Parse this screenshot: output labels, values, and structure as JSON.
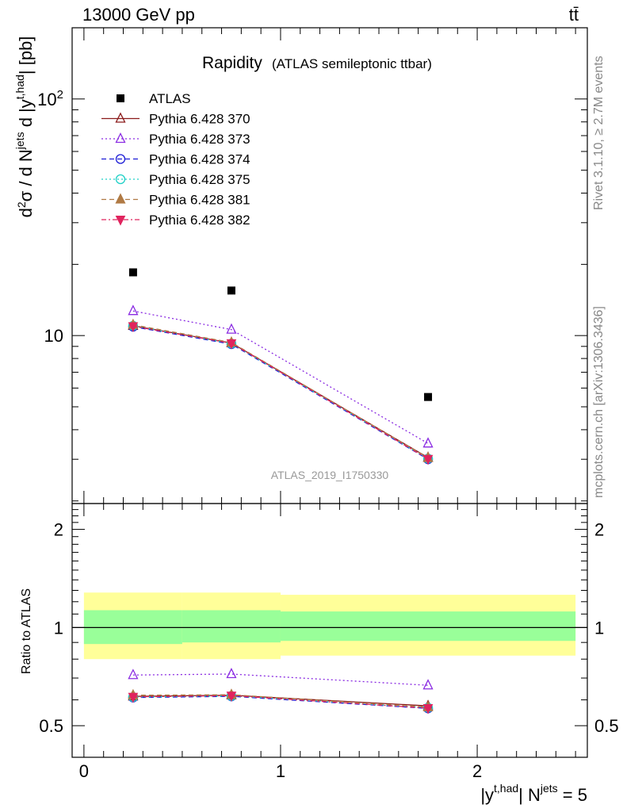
{
  "header": {
    "left": "13000 GeV pp",
    "right": "tt̄"
  },
  "side_labels": {
    "rivet": "Rivet 3.1.10, ≥ 2.7M events",
    "mcplots": "mcplots.cern.ch [arXiv:1306.3436]"
  },
  "chart_data": {
    "type": "line",
    "title": "Rapidity",
    "subtitle": "(ATLAS semileptonic ttbar)",
    "watermark": "ATLAS_2019_I1750330",
    "xlabel": "|y^{t,had}| N^{jets} = 5",
    "ylabel": "d²σ / d N^{jets} d |y^{t,had}| [pb]",
    "ratio_ylabel": "Ratio to ATLAS",
    "x_ticks": [
      "0",
      "1",
      "2"
    ],
    "y_ticks_main": [
      "10",
      "10²"
    ],
    "y_ticks_ratio": [
      "0.5",
      "1",
      "2"
    ],
    "xlim": [
      -0.06,
      2.56
    ],
    "ylim_main": [
      1.95,
      200
    ],
    "ylim_ratio": [
      0.4,
      2.4
    ],
    "y_scale": "log",
    "legend_position": "top-left",
    "x": [
      0.25,
      0.75,
      1.75
    ],
    "data": {
      "name": "ATLAS",
      "values": [
        18.5,
        15.5,
        5.5
      ],
      "bins": [
        [
          0,
          0.5
        ],
        [
          0.5,
          1.0
        ],
        [
          1.0,
          2.5
        ]
      ]
    },
    "ratio_bands": [
      {
        "x0": 0.0,
        "x1": 0.5,
        "inner": [
          0.89,
          1.13
        ],
        "outer": [
          0.8,
          1.28
        ]
      },
      {
        "x0": 0.5,
        "x1": 1.0,
        "inner": [
          0.9,
          1.13
        ],
        "outer": [
          0.8,
          1.28
        ]
      },
      {
        "x0": 1.0,
        "x1": 2.5,
        "inner": [
          0.91,
          1.12
        ],
        "outer": [
          0.82,
          1.26
        ]
      }
    ],
    "series": [
      {
        "name": "Pythia 6.428 370",
        "color": "#8b1a1a",
        "dash": "",
        "marker": "triangle-open",
        "values": [
          11.0,
          9.3,
          3.05
        ],
        "ratio": [
          0.615,
          0.62,
          0.575
        ]
      },
      {
        "name": "Pythia 6.428 373",
        "color": "#8a2be2",
        "dash": "2,3",
        "marker": "triangle-open",
        "values": [
          12.7,
          10.6,
          3.5
        ],
        "ratio": [
          0.715,
          0.72,
          0.665
        ]
      },
      {
        "name": "Pythia 6.428 374",
        "color": "#1c1cd6",
        "dash": "6,4",
        "marker": "circle-open",
        "values": [
          10.9,
          9.2,
          3.0
        ],
        "ratio": [
          0.61,
          0.615,
          0.565
        ]
      },
      {
        "name": "Pythia 6.428 375",
        "color": "#1fd0c6",
        "dash": "2,3",
        "marker": "circle-open",
        "values": [
          11.0,
          9.25,
          3.02
        ],
        "ratio": [
          0.612,
          0.617,
          0.568
        ]
      },
      {
        "name": "Pythia 6.428 381",
        "color": "#b07a44",
        "dash": "6,4",
        "marker": "triangle-filled",
        "values": [
          11.1,
          9.35,
          3.04
        ],
        "ratio": [
          0.62,
          0.622,
          0.57
        ]
      },
      {
        "name": "Pythia 6.428 382",
        "color": "#e0245e",
        "dash": "6,3,2,3",
        "marker": "triangle-down-filled",
        "values": [
          10.95,
          9.28,
          3.01
        ],
        "ratio": [
          0.613,
          0.618,
          0.566
        ]
      }
    ]
  }
}
